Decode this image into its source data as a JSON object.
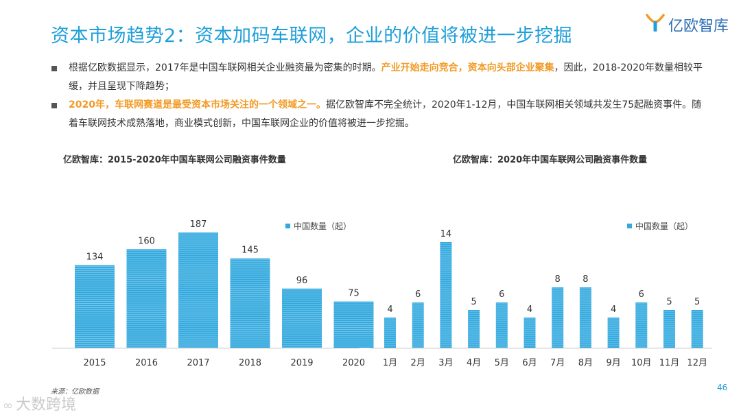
{
  "title": "资本市场趋势2：资本加码车联网，企业的价值将被进一步挖掘",
  "logo": {
    "text": "亿欧智库"
  },
  "bullets": [
    {
      "text_a": "根据亿欧数据显示，2017年是中国车联网相关企业融资最为密集的时期。",
      "highlight": "产业开始走向竞合，资本向头部企业聚集",
      "text_b": "，因此，2018-2020年数量相较平缓，并且呈现下降趋势；"
    },
    {
      "highlight": "2020年，车联网赛道是最受资本市场关注的一个领域之一。",
      "text_b": "据亿欧智库不完全统计，2020年1-12月，中国车联网相关领域共发生75起融资事件。随着车联网技术成熟落地，商业模式创新，中国车联网企业的价值将被进一步挖掘。"
    }
  ],
  "colors": {
    "accent": "#1f9fd9",
    "bar": "#33a9de",
    "highlight": "#f29a24"
  },
  "chart_data": [
    {
      "type": "bar",
      "title": "亿欧智库：2015-2020年中国车联网公司融资事件数量",
      "legend": "中国数量（起）",
      "categories": [
        "2015",
        "2016",
        "2017",
        "2018",
        "2019",
        "2020"
      ],
      "values": [
        134,
        160,
        187,
        145,
        96,
        75
      ],
      "ylim": [
        0,
        187
      ]
    },
    {
      "type": "bar",
      "title": "亿欧智库：2020年中国车联网公司融资事件数量",
      "legend": "中国数量（起）",
      "categories": [
        "1月",
        "2月",
        "3月",
        "4月",
        "5月",
        "6月",
        "7月",
        "8月",
        "9月",
        "10月",
        "11月",
        "12月"
      ],
      "values": [
        4,
        6,
        14,
        5,
        6,
        4,
        8,
        8,
        4,
        6,
        5,
        5
      ],
      "ylim": [
        0,
        14
      ]
    }
  ],
  "source": "来源：亿欧数据",
  "page_number": "46",
  "watermark": "大数跨境"
}
